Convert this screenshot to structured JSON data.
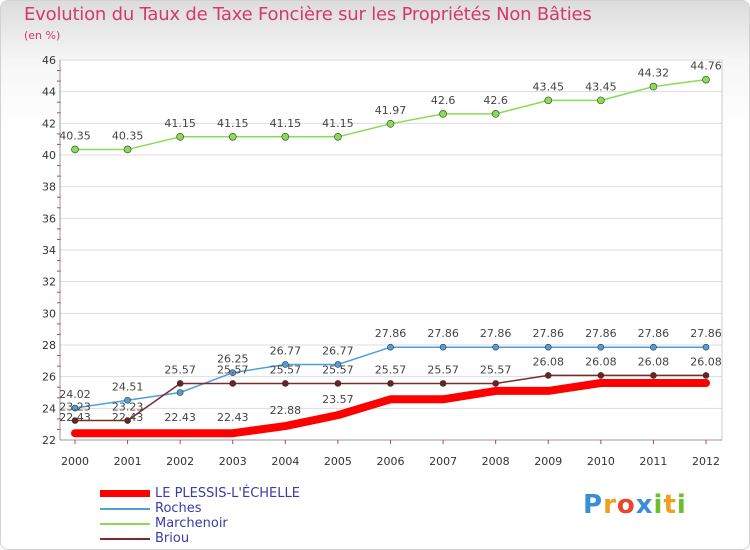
{
  "title": "Evolution du Taux de Taxe Foncière sur les Propriétés Non Bâties",
  "unit_label": "(en %)",
  "logo": {
    "letters": [
      "P",
      "r",
      "o",
      "x",
      "i",
      "t",
      "i"
    ],
    "colors": [
      "#3a8ed8",
      "#f0a020",
      "#e8452c",
      "#3a8ed8",
      "#6cbf2a",
      "#f0a020",
      "#6cbf2a"
    ]
  },
  "chart_data": {
    "type": "line",
    "title": "Evolution du Taux de Taxe Foncière sur les Propriétés Non Bâties",
    "ylabel": "(en %)",
    "xlabel": "",
    "x": [
      "2000",
      "2001",
      "2002",
      "2003",
      "2004",
      "2005",
      "2006",
      "2007",
      "2008",
      "2009",
      "2010",
      "2011",
      "2012"
    ],
    "ylim": [
      22,
      46
    ],
    "yticks": [
      "22",
      "24",
      "26",
      "28",
      "30",
      "32",
      "34",
      "36",
      "38",
      "40",
      "42",
      "44",
      "46"
    ],
    "grid": true,
    "legend_position": "bottom-left",
    "series": [
      {
        "name": "LE PLESSIS-L'ÉCHELLE",
        "color": "#ff0000",
        "values": [
          22.43,
          22.43,
          22.43,
          22.43,
          22.88,
          23.57,
          24.57,
          24.57,
          25.1,
          25.1,
          25.6,
          25.6,
          25.6
        ],
        "labels": [
          "22.43",
          "22.43",
          "22.43",
          "22.43",
          "22.88",
          "23.57",
          "",
          "",
          "",
          "",
          "",
          "",
          ""
        ]
      },
      {
        "name": "Roches",
        "color": "#4f9fd8",
        "values": [
          24.02,
          24.51,
          25.0,
          26.25,
          26.77,
          26.77,
          27.86,
          27.86,
          27.86,
          27.86,
          27.86,
          27.86,
          27.86
        ],
        "labels": [
          "24.02",
          "24.51",
          "",
          "26.25",
          "26.77",
          "26.77",
          "27.86",
          "27.86",
          "27.86",
          "27.86",
          "27.86",
          "27.86",
          "27.86"
        ]
      },
      {
        "name": "Marchenoir",
        "color": "#88dd55",
        "values": [
          40.35,
          40.35,
          41.15,
          41.15,
          41.15,
          41.15,
          41.97,
          42.6,
          42.6,
          43.45,
          43.45,
          44.32,
          44.76
        ],
        "labels": [
          "40.35",
          "40.35",
          "41.15",
          "41.15",
          "41.15",
          "41.15",
          "41.97",
          "42.6",
          "42.6",
          "43.45",
          "43.45",
          "44.32",
          "44.76"
        ]
      },
      {
        "name": "Briou",
        "color": "#7a2b2b",
        "values": [
          23.23,
          23.23,
          25.57,
          25.57,
          25.57,
          25.57,
          25.57,
          25.57,
          25.57,
          26.08,
          26.08,
          26.08,
          26.08
        ],
        "labels": [
          "23.23",
          "23.23",
          "25.57",
          "25.57",
          "25.57",
          "25.57",
          "25.57",
          "25.57",
          "25.57",
          "26.08",
          "26.08",
          "26.08",
          "26.08"
        ]
      }
    ]
  }
}
